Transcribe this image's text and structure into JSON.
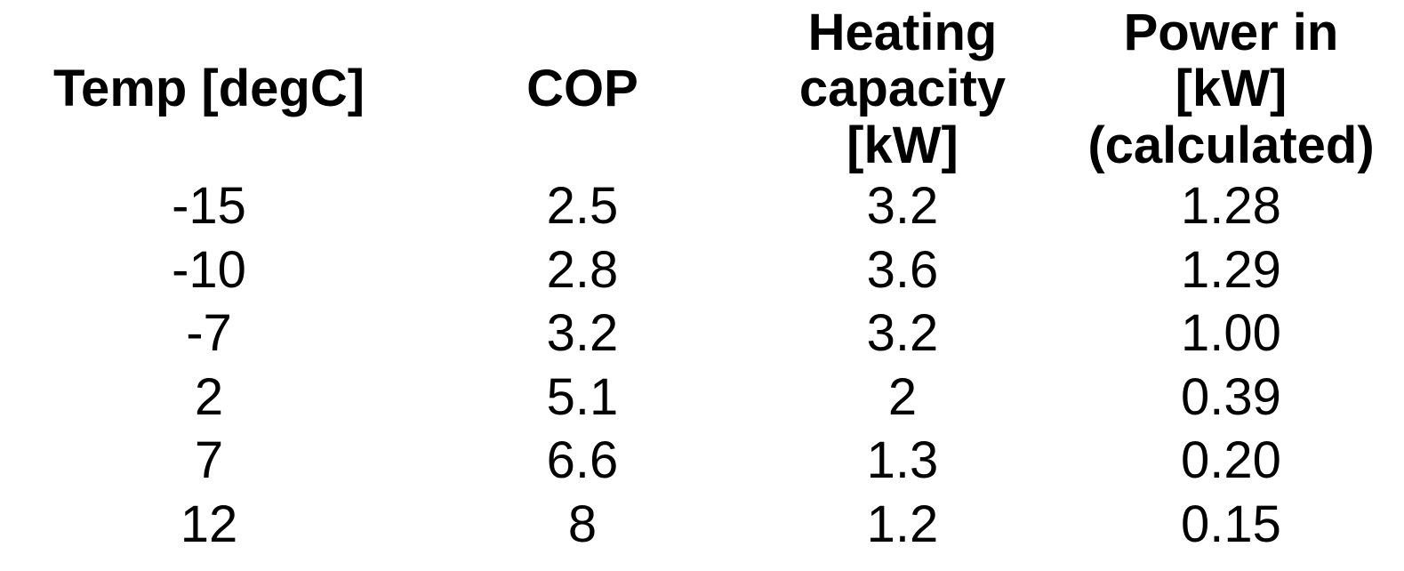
{
  "chart_data": {
    "type": "table",
    "columns": [
      "Temp [degC]",
      "COP",
      "Heating capacity [kW]",
      "Power in [kW] (calculated)"
    ],
    "rows": [
      [
        "-15",
        "2.5",
        "3.2",
        "1.28"
      ],
      [
        "-10",
        "2.8",
        "3.6",
        "1.29"
      ],
      [
        "-7",
        "3.2",
        "3.2",
        "1.00"
      ],
      [
        "2",
        "5.1",
        "2",
        "0.39"
      ],
      [
        "7",
        "6.6",
        "1.3",
        "0.20"
      ],
      [
        "12",
        "8",
        "1.2",
        "0.15"
      ]
    ],
    "layout": {
      "grid": "off",
      "header_style": "bold",
      "alignment": "center"
    }
  },
  "table": {
    "header_labels": [
      "Temp [degC]",
      "COP",
      "Heating capacity\n[kW]",
      "Power in\n[kW]\n(calculated)"
    ]
  },
  "colors": {
    "text": "#000000",
    "background": "#ffffff"
  }
}
